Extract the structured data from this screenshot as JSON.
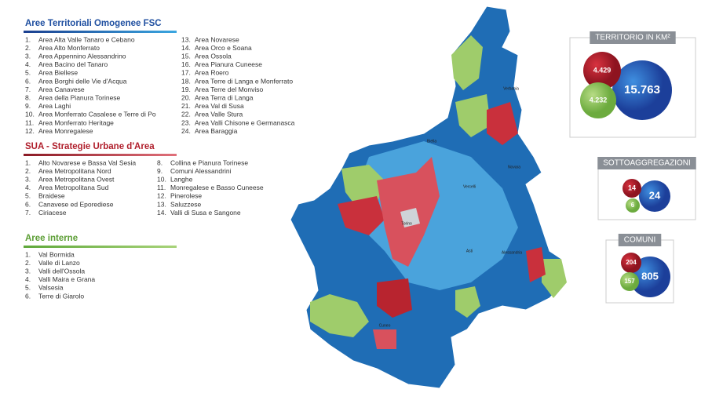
{
  "fsc": {
    "title": "Aree Territoriali Omogenee FSC",
    "items": [
      {
        "num": "1.",
        "name": "Area Alta Valle Tanaro e Cebano"
      },
      {
        "num": "2.",
        "name": "Area Alto Monferrato"
      },
      {
        "num": "3.",
        "name": "Area Appennino Alessandrino"
      },
      {
        "num": "4.",
        "name": "Area Bacino del Tanaro"
      },
      {
        "num": "5.",
        "name": "Area Biellese"
      },
      {
        "num": "6.",
        "name": "Area Borghi delle Vie d'Acqua"
      },
      {
        "num": "7.",
        "name": "Area Canavese"
      },
      {
        "num": "8.",
        "name": "Area della Pianura Torinese"
      },
      {
        "num": "9.",
        "name": "Area Laghi"
      },
      {
        "num": "10.",
        "name": "Area Monferrato Casalese e Terre di Po"
      },
      {
        "num": "11.",
        "name": "Area Monferrato Heritage"
      },
      {
        "num": "12.",
        "name": "Area Monregalese"
      },
      {
        "num": "13.",
        "name": "Area Novarese"
      },
      {
        "num": "14.",
        "name": "Area Orco e Soana"
      },
      {
        "num": "15.",
        "name": "Area Ossola"
      },
      {
        "num": "16.",
        "name": "Area Pianura Cuneese"
      },
      {
        "num": "17.",
        "name": "Area Roero"
      },
      {
        "num": "18.",
        "name": "Area Terre di Langa e Monferrato"
      },
      {
        "num": "19.",
        "name": "Area Terre del Monviso"
      },
      {
        "num": "20.",
        "name": "Area Terra di Langa"
      },
      {
        "num": "21.",
        "name": "Area Val di Susa"
      },
      {
        "num": "22.",
        "name": "Area Valle Stura"
      },
      {
        "num": "23.",
        "name": "Area Valli Chisone e Germanasca"
      },
      {
        "num": "24.",
        "name": "Area Baraggia"
      }
    ]
  },
  "sua": {
    "title": "SUA - Strategie Urbane d'Area",
    "items": [
      {
        "num": "1.",
        "name": "Alto Novarese e Bassa Val Sesia"
      },
      {
        "num": "2.",
        "name": "Area Metropolitana Nord"
      },
      {
        "num": "3.",
        "name": "Area Metropolitana Ovest"
      },
      {
        "num": "4.",
        "name": "Area Metropolitana Sud"
      },
      {
        "num": "5.",
        "name": "Braidese"
      },
      {
        "num": "6.",
        "name": "Canavese ed Eporediese"
      },
      {
        "num": "7.",
        "name": "Ciriacese"
      },
      {
        "num": "8.",
        "name": "Collina e Pianura Torinese"
      },
      {
        "num": "9.",
        "name": "Comuni Alessandrini"
      },
      {
        "num": "10.",
        "name": "Langhe"
      },
      {
        "num": "11.",
        "name": "Monregalese e Basso Cuneese"
      },
      {
        "num": "12.",
        "name": "Pinerolese"
      },
      {
        "num": "13.",
        "name": "Saluzzese"
      },
      {
        "num": "14.",
        "name": "Valli di Susa e Sangone"
      }
    ]
  },
  "interne": {
    "title": "Aree interne",
    "items": [
      {
        "num": "1.",
        "name": "Val Bormida"
      },
      {
        "num": "2.",
        "name": "Valle di Lanzo"
      },
      {
        "num": "3.",
        "name": "Valli dell'Ossola"
      },
      {
        "num": "4.",
        "name": "Valli Maira e Grana"
      },
      {
        "num": "5.",
        "name": "Valsesia"
      },
      {
        "num": "6.",
        "name": "Terre di Giarolo"
      }
    ]
  },
  "stats": [
    {
      "title": "TERRITORIO IN KM²",
      "fsc": "15.763",
      "sua": "4.429",
      "interne": "4.232"
    },
    {
      "title": "SOTTOAGGREGAZIONI",
      "fsc": "24",
      "sua": "14",
      "interne": "6"
    },
    {
      "title": "COMUNI",
      "fsc": "805",
      "sua": "204",
      "interne": "157"
    }
  ],
  "map": {
    "cities": [
      "Torino",
      "Cuneo",
      "Alessandria",
      "Asti",
      "Biella",
      "Vercelli",
      "Novara",
      "Verbania"
    ]
  }
}
